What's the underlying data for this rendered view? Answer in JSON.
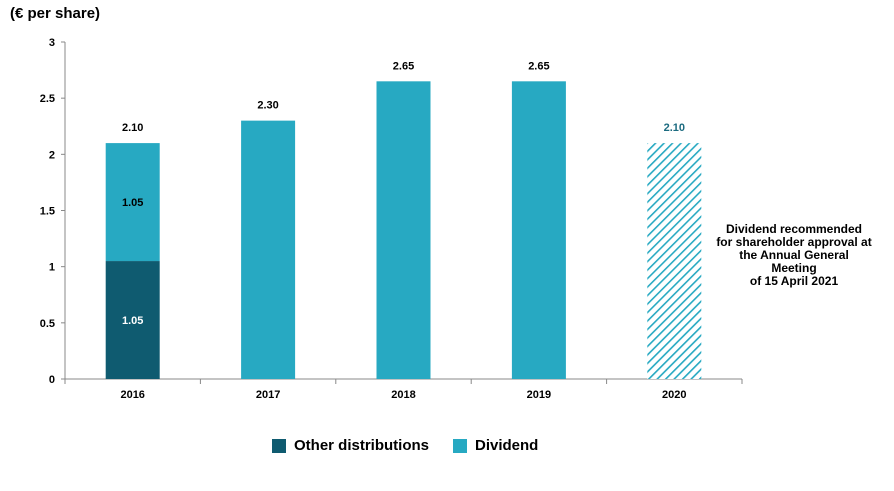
{
  "unit_label": "(€ per share)",
  "note": "Dividend recommended\nfor shareholder approval at\nthe Annual General Meeting\nof 15 April 2021",
  "colors": {
    "other_distributions": "#0f5b70",
    "dividend": "#27a9c2",
    "proposed_text": "#1c6b80"
  },
  "legend": [
    {
      "name": "Other distributions",
      "color": "#0f5b70"
    },
    {
      "name": "Dividend",
      "color": "#27a9c2"
    }
  ],
  "chart_data": {
    "type": "bar",
    "stacked": true,
    "categories": [
      "2016",
      "2017",
      "2018",
      "2019",
      "2020"
    ],
    "ylim": [
      0,
      3
    ],
    "yticks": [
      "0",
      "0.5",
      "1",
      "1.5",
      "2",
      "2.5",
      "3"
    ],
    "series": [
      {
        "name": "Other distributions",
        "values": [
          1.05,
          0,
          0,
          0,
          0
        ],
        "labels": [
          "1.05",
          "",
          "",
          "",
          ""
        ]
      },
      {
        "name": "Dividend",
        "values": [
          1.05,
          2.3,
          2.65,
          2.65,
          2.1
        ],
        "labels": [
          "1.05",
          "",
          "",
          "",
          ""
        ]
      }
    ],
    "totals": [
      "2.10",
      "2.30",
      "2.65",
      "2.65",
      "2.10"
    ],
    "proposed_category": "2020"
  }
}
